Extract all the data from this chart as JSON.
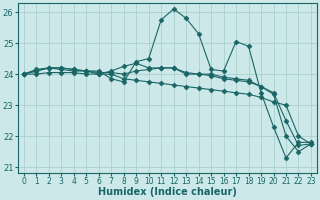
{
  "xlabel": "Humidex (Indice chaleur)",
  "xlim": [
    -0.5,
    23.5
  ],
  "ylim": [
    20.8,
    26.3
  ],
  "yticks": [
    21,
    22,
    23,
    24,
    25,
    26
  ],
  "xticks": [
    0,
    1,
    2,
    3,
    4,
    5,
    6,
    7,
    8,
    9,
    10,
    11,
    12,
    13,
    14,
    15,
    16,
    17,
    18,
    19,
    20,
    21,
    22,
    23
  ],
  "background_color": "#cce8e8",
  "grid_color": "#aad0d0",
  "line_color": "#1a6666",
  "series": [
    [
      24.0,
      24.15,
      24.2,
      24.2,
      24.15,
      24.1,
      24.1,
      23.85,
      23.75,
      24.4,
      24.5,
      25.75,
      26.1,
      25.8,
      25.3,
      24.15,
      24.1,
      25.05,
      24.9,
      23.4,
      22.3,
      21.3,
      21.8,
      21.8
    ],
    [
      24.0,
      24.1,
      24.2,
      24.2,
      24.15,
      24.1,
      24.0,
      24.1,
      24.25,
      24.35,
      24.2,
      24.2,
      24.2,
      24.05,
      24.0,
      23.95,
      23.85,
      23.8,
      23.75,
      23.6,
      23.35,
      22.0,
      21.5,
      21.75
    ],
    [
      24.0,
      24.1,
      24.2,
      24.15,
      24.1,
      24.1,
      24.05,
      24.05,
      24.0,
      24.1,
      24.15,
      24.2,
      24.2,
      24.0,
      24.0,
      24.0,
      23.9,
      23.85,
      23.8,
      23.6,
      23.4,
      22.5,
      21.7,
      21.75
    ],
    [
      24.0,
      24.0,
      24.05,
      24.05,
      24.05,
      24.0,
      24.0,
      24.0,
      23.85,
      23.8,
      23.75,
      23.7,
      23.65,
      23.6,
      23.55,
      23.5,
      23.45,
      23.4,
      23.35,
      23.25,
      23.1,
      23.0,
      22.0,
      21.75
    ]
  ],
  "marker": "D",
  "markersize": 2.5,
  "linewidth": 0.8,
  "fontsize_label": 7,
  "fontsize_tick": 5.5
}
